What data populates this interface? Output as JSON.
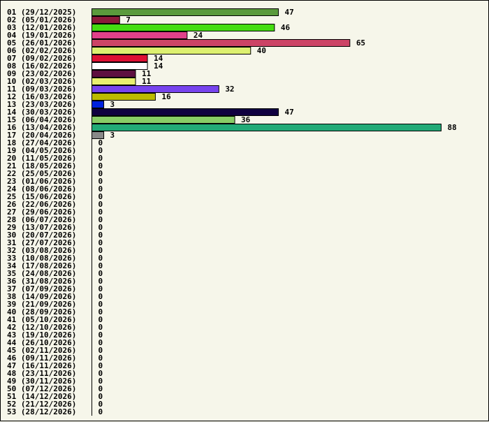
{
  "chart_data": {
    "type": "bar",
    "orientation": "horizontal",
    "categories": [
      "01 (29/12/2025)",
      "02 (05/01/2026)",
      "03 (12/01/2026)",
      "04 (19/01/2026)",
      "05 (26/01/2026)",
      "06 (02/02/2026)",
      "07 (09/02/2026)",
      "08 (16/02/2026)",
      "09 (23/02/2026)",
      "10 (02/03/2026)",
      "11 (09/03/2026)",
      "12 (16/03/2026)",
      "13 (23/03/2026)",
      "14 (30/03/2026)",
      "15 (06/04/2026)",
      "16 (13/04/2026)",
      "17 (20/04/2026)",
      "18 (27/04/2026)",
      "19 (04/05/2026)",
      "20 (11/05/2026)",
      "21 (18/05/2026)",
      "22 (25/05/2026)",
      "23 (01/06/2026)",
      "24 (08/06/2026)",
      "25 (15/06/2026)",
      "26 (22/06/2026)",
      "27 (29/06/2026)",
      "28 (06/07/2026)",
      "29 (13/07/2026)",
      "30 (20/07/2026)",
      "31 (27/07/2026)",
      "32 (03/08/2026)",
      "33 (10/08/2026)",
      "34 (17/08/2026)",
      "35 (24/08/2026)",
      "36 (31/08/2026)",
      "37 (07/09/2026)",
      "38 (14/09/2026)",
      "39 (21/09/2026)",
      "40 (28/09/2026)",
      "41 (05/10/2026)",
      "42 (12/10/2026)",
      "43 (19/10/2026)",
      "44 (26/10/2026)",
      "45 (02/11/2026)",
      "46 (09/11/2026)",
      "47 (16/11/2026)",
      "48 (23/11/2026)",
      "49 (30/11/2026)",
      "50 (07/12/2026)",
      "51 (14/12/2026)",
      "52 (21/12/2026)",
      "53 (28/12/2026)"
    ],
    "values": [
      47,
      7,
      46,
      24,
      65,
      40,
      14,
      14,
      11,
      11,
      32,
      16,
      3,
      47,
      36,
      88,
      3,
      0,
      0,
      0,
      0,
      0,
      0,
      0,
      0,
      0,
      0,
      0,
      0,
      0,
      0,
      0,
      0,
      0,
      0,
      0,
      0,
      0,
      0,
      0,
      0,
      0,
      0,
      0,
      0,
      0,
      0,
      0,
      0,
      0,
      0,
      0,
      0
    ],
    "colors": [
      "#5a9a3c",
      "#8b1a3a",
      "#44dd11",
      "#e0408a",
      "#cc4466",
      "#ddf070",
      "#dd1133",
      "#ffffff",
      "#5e1040",
      "#e8f070",
      "#7744ee",
      "#bbbb00",
      "#0022dd",
      "#100040",
      "#88cc66",
      "#22aa77",
      "#888888"
    ],
    "xlim": [
      0,
      88
    ],
    "data_labels": true,
    "grid": false,
    "legend": "none"
  }
}
